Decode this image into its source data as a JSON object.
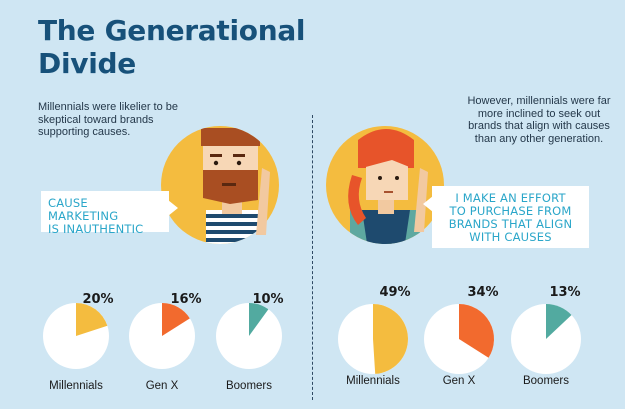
{
  "title_line1": "The Generational",
  "title_line2": "Divide",
  "left_text": "Millennials were likelier to be skeptical toward brands supporting causes.",
  "right_text": "However, millennials were far more inclined to seek out brands that align with causes than any other generation.",
  "left_quote_line1": "CAUSE MARKETING",
  "left_quote_line2": "IS INAUTHENTIC",
  "right_quote_line1": "I MAKE AN EFFORT",
  "right_quote_line2": "TO PURCHASE FROM",
  "right_quote_line3": "BRANDS THAT ALIGN",
  "right_quote_line4": "WITH CAUSES",
  "colors": {
    "background": "#cfe6f3",
    "title": "#17517a",
    "circle": "#f4bc3f",
    "millennials": "#f4bc3f",
    "genx": "#f26a2e",
    "boomers": "#52aaa0",
    "quote_text": "#2aa6c9"
  },
  "chart_data": [
    {
      "type": "pie",
      "title": "",
      "categories": [
        "Millennials",
        "Gen X",
        "Boomers"
      ],
      "values": [
        20,
        16,
        10
      ],
      "labels": [
        "20%",
        "16%",
        "10%"
      ],
      "unit": "%"
    },
    {
      "type": "pie",
      "title": "",
      "categories": [
        "Millennials",
        "Gen X",
        "Boomers"
      ],
      "values": [
        49,
        34,
        13
      ],
      "labels": [
        "49%",
        "34%",
        "13%"
      ],
      "unit": "%"
    }
  ]
}
